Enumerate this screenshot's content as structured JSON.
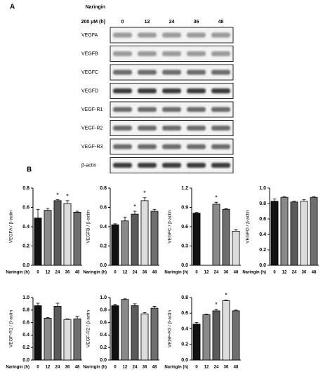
{
  "panel_a": {
    "label": "A",
    "treatment": [
      "Naringin",
      "200 µM (h)"
    ],
    "times": [
      "0",
      "12",
      "24",
      "36",
      "48"
    ],
    "proteins": [
      "VEGFA",
      "VEGFB",
      "VEGFC",
      "VEGFD",
      "VEGF-R1",
      "VEGF-R2",
      "VEGF-R3",
      "β-actin"
    ]
  },
  "panel_b_label": "B",
  "chart_data": [
    {
      "type": "bar",
      "ylabel": "VEGFA / β-actin",
      "xlabel": "Naringin (h)",
      "categories": [
        "0",
        "12",
        "24",
        "36",
        "48"
      ],
      "values": [
        0.49,
        0.57,
        0.67,
        0.64,
        0.55
      ],
      "errors": [
        0.09,
        0.02,
        0.01,
        0.03,
        0.01
      ],
      "colors": [
        "#111111",
        "#8a8a8a",
        "#5a5a5a",
        "#dcdcdc",
        "#6e6e6e"
      ],
      "ylim": [
        0,
        0.8
      ],
      "yticks": [
        {
          "value": 0,
          "label": "0.0"
        },
        0.2,
        0.4,
        0.6,
        0.8
      ],
      "annotations": [
        {
          "x": "24",
          "text": "*"
        },
        {
          "x": "36",
          "text": "*"
        }
      ]
    },
    {
      "type": "bar",
      "ylabel": "VEGFB / β-actin",
      "xlabel": "Naringin (h)",
      "categories": [
        "0",
        "12",
        "24",
        "36",
        "48"
      ],
      "values": [
        0.42,
        0.46,
        0.53,
        0.67,
        0.56
      ],
      "errors": [
        0.01,
        0.04,
        0.03,
        0.03,
        0.02
      ],
      "colors": [
        "#111111",
        "#8a8a8a",
        "#5a5a5a",
        "#dcdcdc",
        "#6e6e6e"
      ],
      "ylim": [
        0,
        0.8
      ],
      "yticks": [
        {
          "value": 0,
          "label": "0.0"
        },
        0.2,
        0.4,
        0.6,
        0.8
      ],
      "annotations": [
        {
          "x": "24",
          "text": "*"
        },
        {
          "x": "36",
          "text": "*"
        }
      ]
    },
    {
      "type": "bar",
      "ylabel": "VEGFC / β-actin",
      "xlabel": "Naringin (h)",
      "categories": [
        "0",
        "12",
        "24",
        "36",
        "48"
      ],
      "values": [
        0.81,
        null,
        0.95,
        0.87,
        0.53
      ],
      "errors": [
        0.01,
        null,
        0.03,
        0.01,
        0.02
      ],
      "colors": [
        "#111111",
        "#8a8a8a",
        "#8a8a8a",
        "#6e6e6e",
        "#dcdcdc"
      ],
      "ylim": [
        0,
        1.2
      ],
      "yticks": [
        {
          "value": 0,
          "label": "0.0"
        },
        0.3,
        0.6,
        0.9,
        1.2
      ],
      "annotations": [
        {
          "x": "24",
          "text": "*"
        }
      ]
    },
    {
      "type": "bar",
      "ylabel": "VEGFD / β-actin",
      "xlabel": "Naringin (h)",
      "categories": [
        "0",
        "12",
        "24",
        "36",
        "48"
      ],
      "values": [
        0.83,
        0.88,
        0.82,
        0.83,
        0.88
      ],
      "errors": [
        0.03,
        0.01,
        0.01,
        0.02,
        0.01
      ],
      "colors": [
        "#111111",
        "#8a8a8a",
        "#5a5a5a",
        "#dcdcdc",
        "#6e6e6e"
      ],
      "ylim": [
        0,
        1.0
      ],
      "yticks": [
        {
          "value": 0,
          "label": "0.0"
        },
        0.2,
        0.4,
        0.6,
        0.8,
        {
          "value": 1,
          "label": "1.0"
        }
      ],
      "annotations": []
    },
    {
      "type": "bar",
      "ylabel": "VEGF-R1 / β-actin",
      "xlabel": "Naringin (h)",
      "categories": [
        "0",
        "12",
        "24",
        "36",
        "48"
      ],
      "values": [
        0.87,
        0.67,
        0.86,
        0.65,
        0.66
      ],
      "errors": [
        0.04,
        0.01,
        0.05,
        0.01,
        0.04
      ],
      "colors": [
        "#111111",
        "#8a8a8a",
        "#5a5a5a",
        "#dcdcdc",
        "#6e6e6e"
      ],
      "ylim": [
        0,
        1.0
      ],
      "yticks": [
        {
          "value": 0,
          "label": "0.0"
        },
        0.2,
        0.4,
        0.6,
        0.8,
        {
          "value": 1,
          "label": "1.0"
        }
      ],
      "annotations": []
    },
    {
      "type": "bar",
      "ylabel": "VEGF-R2 / β-actin",
      "xlabel": "Naringin (h)",
      "categories": [
        "0",
        "12",
        "24",
        "36",
        "48"
      ],
      "values": [
        0.87,
        0.97,
        0.87,
        0.74,
        0.83
      ],
      "errors": [
        0.02,
        0.01,
        0.03,
        0.02,
        0.03
      ],
      "colors": [
        "#111111",
        "#8a8a8a",
        "#5a5a5a",
        "#dcdcdc",
        "#6e6e6e"
      ],
      "ylim": [
        0,
        1.0
      ],
      "yticks": [
        {
          "value": 0,
          "label": "0.0"
        },
        0.2,
        0.4,
        0.6,
        0.8,
        {
          "value": 1,
          "label": "1.0"
        }
      ],
      "annotations": []
    },
    {
      "type": "bar",
      "ylabel": "VEGF-R3 / β-actin",
      "xlabel": "Naringin (h)",
      "categories": [
        "0",
        "12",
        "24",
        "36",
        "48"
      ],
      "values": [
        0.46,
        0.58,
        0.63,
        0.76,
        0.63
      ],
      "errors": [
        0.02,
        0.01,
        0.02,
        0.01,
        0.01
      ],
      "colors": [
        "#111111",
        "#8a8a8a",
        "#5a5a5a",
        "#dcdcdc",
        "#6e6e6e"
      ],
      "ylim": [
        0,
        0.8
      ],
      "yticks": [
        {
          "value": 0,
          "label": "0.0"
        },
        0.2,
        0.4,
        0.6,
        0.8
      ],
      "annotations": [
        {
          "x": "24",
          "text": "*"
        },
        {
          "x": "36",
          "text": "*"
        }
      ]
    }
  ]
}
